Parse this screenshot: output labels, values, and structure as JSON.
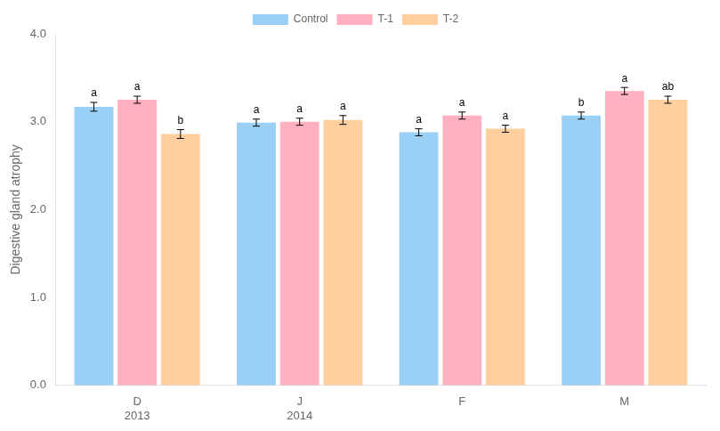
{
  "chart_data": {
    "type": "bar",
    "categories": [
      "D\n2013",
      "J\n2014",
      "F",
      "M"
    ],
    "series": [
      {
        "name": "Control",
        "values": [
          3.17,
          2.99,
          2.88,
          3.07
        ],
        "errors": [
          0.05,
          0.04,
          0.04,
          0.04
        ],
        "annotations": [
          "a",
          "a",
          "a",
          "b"
        ]
      },
      {
        "name": "T-1",
        "values": [
          3.25,
          3.0,
          3.07,
          3.35
        ],
        "errors": [
          0.04,
          0.04,
          0.04,
          0.04
        ],
        "annotations": [
          "a",
          "a",
          "a",
          "a"
        ]
      },
      {
        "name": "T-2",
        "values": [
          2.86,
          3.02,
          2.92,
          3.25
        ],
        "errors": [
          0.05,
          0.05,
          0.04,
          0.04
        ],
        "annotations": [
          "b",
          "a",
          "a",
          "ab"
        ]
      }
    ],
    "y_label": "Digestive gland atrophy",
    "ylim": [
      0.0,
      4.0
    ],
    "yticks": [
      {
        "value": 0.0,
        "label": "0.0"
      },
      {
        "value": 1.0,
        "label": "1.0"
      },
      {
        "value": 2.0,
        "label": "2.0"
      },
      {
        "value": 3.0,
        "label": "3.0"
      },
      {
        "value": 4.0,
        "label": "4.0"
      }
    ],
    "grid": false,
    "legend": "top"
  }
}
